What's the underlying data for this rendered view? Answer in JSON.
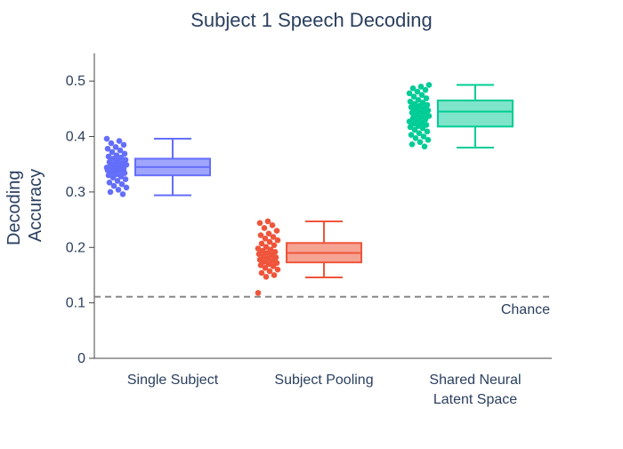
{
  "chart_data": {
    "type": "box",
    "title": "Subject 1 Speech Decoding",
    "xlabel": "",
    "ylabel_lines": [
      "Decoding",
      "Accuracy"
    ],
    "ylim": [
      0,
      0.55
    ],
    "yticks": [
      0,
      0.1,
      0.2,
      0.3,
      0.4,
      0.5
    ],
    "ytick_labels": [
      "0",
      "0.1",
      "0.2",
      "0.3",
      "0.4",
      "0.5"
    ],
    "grid": false,
    "reference_line": {
      "label": "Chance",
      "value": 0.111,
      "color": "#888888",
      "style": "dashed"
    },
    "categories": [
      {
        "label_lines": [
          "Single Subject"
        ]
      },
      {
        "label_lines": [
          "Subject Pooling"
        ]
      },
      {
        "label_lines": [
          "Shared Neural",
          "Latent Space"
        ]
      }
    ],
    "series": [
      {
        "color": "#636efa",
        "fill": "#9fa5fc",
        "box": {
          "min": 0.294,
          "q1": 0.33,
          "median": 0.345,
          "q3": 0.36,
          "max": 0.396
        },
        "points": [
          0.396,
          0.392,
          0.388,
          0.385,
          0.381,
          0.378,
          0.375,
          0.372,
          0.369,
          0.366,
          0.364,
          0.362,
          0.36,
          0.358,
          0.356,
          0.354,
          0.352,
          0.35,
          0.349,
          0.348,
          0.347,
          0.346,
          0.345,
          0.344,
          0.343,
          0.342,
          0.341,
          0.34,
          0.339,
          0.338,
          0.336,
          0.334,
          0.332,
          0.33,
          0.328,
          0.326,
          0.323,
          0.32,
          0.317,
          0.314,
          0.311,
          0.308,
          0.304,
          0.3,
          0.296
        ]
      },
      {
        "color": "#ef553b",
        "fill": "#f5a393",
        "box": {
          "min": 0.146,
          "q1": 0.173,
          "median": 0.19,
          "q3": 0.208,
          "max": 0.247
        },
        "points": [
          0.247,
          0.244,
          0.24,
          0.235,
          0.23,
          0.225,
          0.222,
          0.219,
          0.216,
          0.213,
          0.21,
          0.207,
          0.204,
          0.201,
          0.198,
          0.196,
          0.194,
          0.192,
          0.19,
          0.188,
          0.186,
          0.184,
          0.182,
          0.18,
          0.178,
          0.176,
          0.174,
          0.172,
          0.17,
          0.168,
          0.166,
          0.163,
          0.16,
          0.157,
          0.154,
          0.15,
          0.147,
          0.118
        ]
      },
      {
        "color": "#00cc96",
        "fill": "#7fe5ca",
        "box": {
          "min": 0.38,
          "q1": 0.418,
          "median": 0.445,
          "q3": 0.465,
          "max": 0.493
        },
        "points": [
          0.493,
          0.49,
          0.487,
          0.484,
          0.481,
          0.478,
          0.475,
          0.472,
          0.469,
          0.466,
          0.463,
          0.461,
          0.459,
          0.457,
          0.455,
          0.453,
          0.451,
          0.449,
          0.447,
          0.445,
          0.443,
          0.441,
          0.439,
          0.437,
          0.435,
          0.433,
          0.431,
          0.429,
          0.427,
          0.425,
          0.423,
          0.421,
          0.419,
          0.417,
          0.415,
          0.412,
          0.409,
          0.406,
          0.403,
          0.4,
          0.397,
          0.394,
          0.39,
          0.386,
          0.382
        ]
      }
    ]
  }
}
